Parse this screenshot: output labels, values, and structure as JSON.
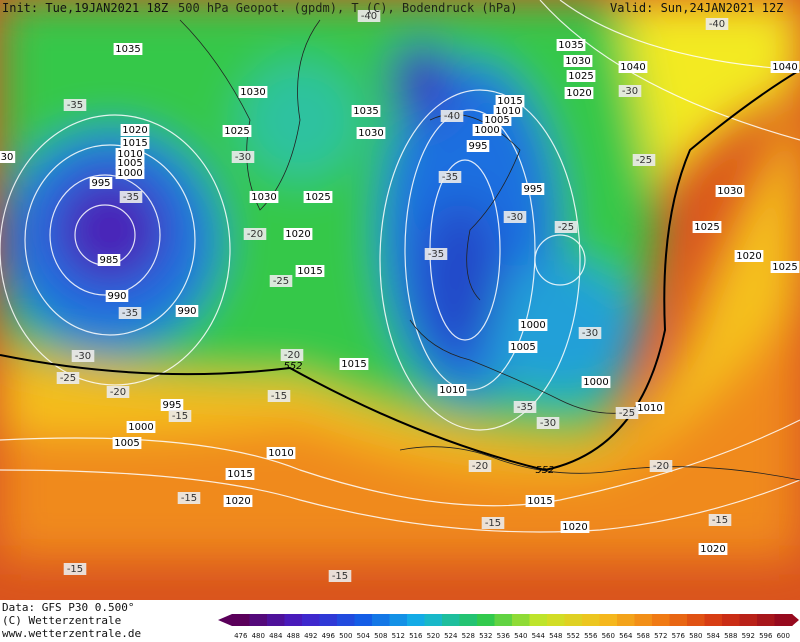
{
  "header": {
    "init": "Init: Tue,19JAN2021 18Z",
    "title": "500 hPa Geopot. (gpdm), T (C), Bodendruck (hPa)",
    "valid": "Valid: Sun,24JAN2021 12Z"
  },
  "footer": {
    "data": "Data: GFS P30 0.500°",
    "copyright": "(C) Wetterzentrale",
    "url": "www.wetterzentrale.de"
  },
  "isobars": [
    "1035",
    "1030",
    "1025",
    "1020",
    "1015",
    "1010",
    "1005",
    "1000",
    "995",
    "985",
    "990",
    "990",
    "1030",
    "1025",
    "1020",
    "1015",
    "1035",
    "1030",
    "1035",
    "1030",
    "1025",
    "1020",
    "1040",
    "1040",
    "1015",
    "1010",
    "1005",
    "1000",
    "995",
    "995",
    "1030",
    "1025",
    "1020",
    "1025",
    "1000",
    "1005",
    "1000",
    "1010",
    "1010",
    "1015",
    "995",
    "1000",
    "1005",
    "1010",
    "1015",
    "1020",
    "1015",
    "1020",
    "1020",
    "30"
  ],
  "temperatures": [
    "-40",
    "-40",
    "-30",
    "-35",
    "-30",
    "-40",
    "-25",
    "-35",
    "-35",
    "-20",
    "-30",
    "-25",
    "-35",
    "-25",
    "-35",
    "-30",
    "-30",
    "-25",
    "-20",
    "-20",
    "-15",
    "-15",
    "-35",
    "-30",
    "-25",
    "-20",
    "-20",
    "-15",
    "-15",
    "-15",
    "-15",
    "-15"
  ],
  "geopotential": [
    "552",
    "552"
  ],
  "scale": {
    "values": [
      476,
      480,
      484,
      488,
      492,
      496,
      500,
      504,
      508,
      512,
      516,
      520,
      524,
      528,
      532,
      536,
      540,
      544,
      548,
      552,
      556,
      560,
      564,
      568,
      572,
      576,
      580,
      584,
      588,
      592,
      596,
      600
    ]
  }
}
